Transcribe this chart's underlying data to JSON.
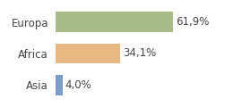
{
  "categories": [
    "Europa",
    "Africa",
    "Asia"
  ],
  "values": [
    61.9,
    34.1,
    4.0
  ],
  "labels": [
    "61,9%",
    "34,1%",
    "4,0%"
  ],
  "bar_colors": [
    "#a8bc8a",
    "#e8b882",
    "#7b9ec9"
  ],
  "background_color": "#ffffff",
  "xlim": [
    0,
    100
  ],
  "bar_height": 0.65,
  "label_fontsize": 8.5,
  "tick_fontsize": 8.5
}
